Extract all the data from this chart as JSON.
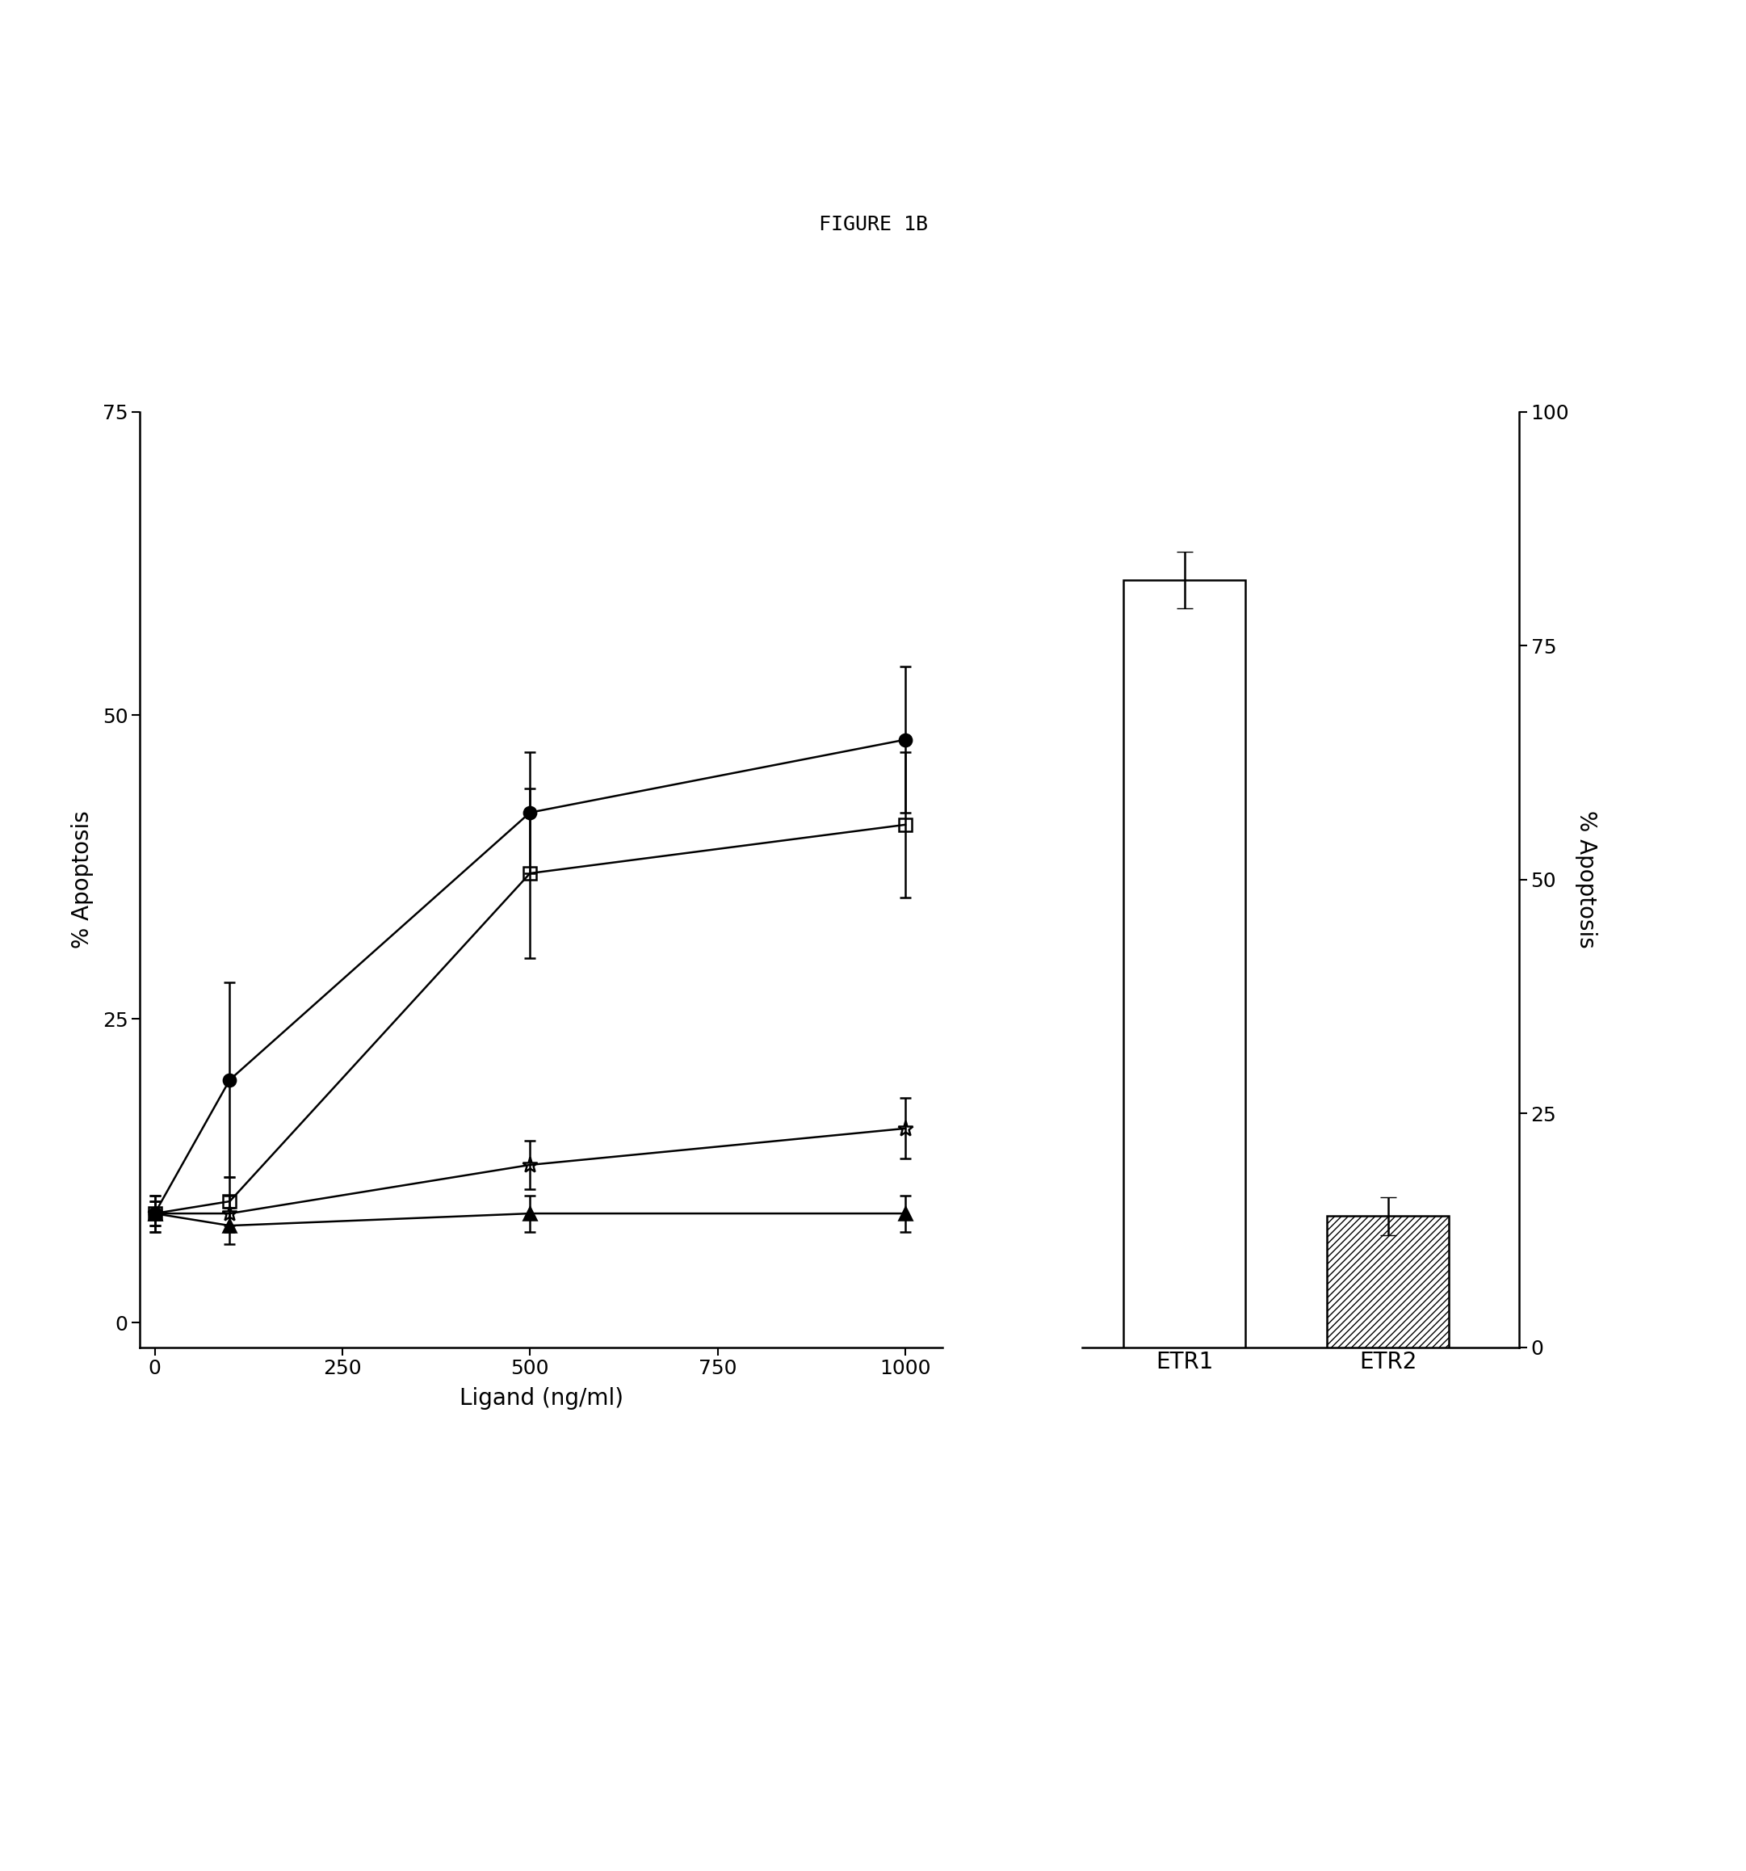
{
  "title": "FIGURE 1B",
  "title_fontsize": 18,
  "title_fontfamily": "monospace",
  "line_x": [
    0,
    100,
    500,
    1000
  ],
  "line_xlabel": "Ligand (ng/ml)",
  "line_ylabel": "% Apoptosis",
  "line_ylim": [
    -2,
    75
  ],
  "line_yticks": [
    0,
    25,
    50,
    75
  ],
  "line_xlim": [
    -20,
    1050
  ],
  "line_xticks": [
    0,
    250,
    500,
    750,
    1000
  ],
  "series": [
    {
      "label": "filled_circle",
      "y": [
        9,
        20,
        42,
        48
      ],
      "yerr": [
        1.5,
        8,
        5,
        6
      ],
      "marker": "o",
      "fillstyle": "full",
      "color": "#000000",
      "markersize": 11,
      "linewidth": 1.8
    },
    {
      "label": "open_square",
      "y": [
        9,
        10,
        37,
        41
      ],
      "yerr": [
        1.5,
        2,
        7,
        6
      ],
      "marker": "s",
      "fillstyle": "none",
      "color": "#000000",
      "markersize": 11,
      "linewidth": 1.8
    },
    {
      "label": "open_star",
      "y": [
        9,
        9,
        13,
        16
      ],
      "yerr": [
        1,
        1.5,
        2,
        2.5
      ],
      "marker": "*",
      "fillstyle": "none",
      "color": "#000000",
      "markersize": 14,
      "linewidth": 1.8
    },
    {
      "label": "filled_triangle",
      "y": [
        9,
        8,
        9,
        9
      ],
      "yerr": [
        1,
        1.5,
        1.5,
        1.5
      ],
      "marker": "^",
      "fillstyle": "full",
      "color": "#000000",
      "markersize": 11,
      "linewidth": 1.8
    }
  ],
  "bar_ylabel": "% Apoptosis",
  "bar_ylim": [
    0,
    100
  ],
  "bar_yticks": [
    0,
    25,
    50,
    75,
    100
  ],
  "bars": [
    {
      "label": "ETR1",
      "value": 82,
      "yerr": 3,
      "facecolor": "white",
      "edgecolor": "black",
      "hatch": null
    },
    {
      "label": "ETR2",
      "value": 14,
      "yerr": 2,
      "facecolor": "white",
      "edgecolor": "black",
      "hatch": "////"
    }
  ],
  "background_color": "white",
  "axes_color": "black",
  "tick_fontsize": 18,
  "label_fontsize": 20,
  "axis_linewidth": 1.8
}
